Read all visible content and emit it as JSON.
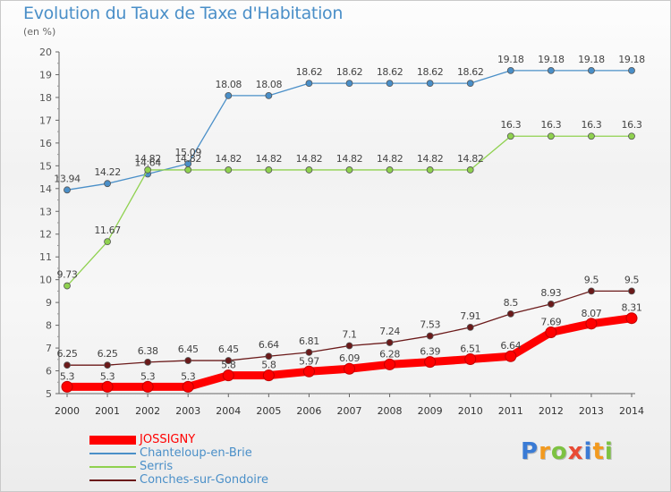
{
  "title": "Evolution du Taux de Taxe d'Habitation",
  "unit": "(en %)",
  "logo": {
    "letters": [
      "P",
      "r",
      "o",
      "x",
      "i",
      "t",
      "i"
    ],
    "colors": [
      "#3a7bd5",
      "#f29a1f",
      "#7dc242",
      "#e94b35",
      "#3a7bd5",
      "#f29a1f",
      "#7dc242"
    ]
  },
  "chart_data": {
    "type": "line",
    "x": [
      2000,
      2001,
      2002,
      2003,
      2004,
      2005,
      2006,
      2007,
      2008,
      2009,
      2010,
      2011,
      2012,
      2013,
      2014
    ],
    "ylim": [
      5,
      20
    ],
    "yticks": [
      5,
      6,
      7,
      8,
      9,
      10,
      11,
      12,
      13,
      14,
      15,
      16,
      17,
      18,
      19,
      20
    ],
    "grid": false,
    "legend_position": "bottom-left",
    "series": [
      {
        "name": "JOSSIGNY",
        "color": "#ff0000",
        "values": [
          5.3,
          5.3,
          5.3,
          5.3,
          5.8,
          5.8,
          5.97,
          6.09,
          6.28,
          6.39,
          6.51,
          6.64,
          7.69,
          8.07,
          8.31
        ],
        "labels": [
          "5.3",
          "5.3",
          "5.3",
          "5.3",
          "5.8",
          "5.8",
          "5.97",
          "6.09",
          "6.28",
          "6.39",
          "6.51",
          "6.64",
          "7.69",
          "8.07",
          "8.31"
        ]
      },
      {
        "name": "Chanteloup-en-Brie",
        "color": "#4a8fc8",
        "values": [
          13.94,
          14.22,
          14.64,
          15.09,
          18.08,
          18.08,
          18.62,
          18.62,
          18.62,
          18.62,
          18.62,
          19.18,
          19.18,
          19.18,
          19.18
        ],
        "labels": [
          "13.94",
          "14.22",
          "14.64",
          "15.09",
          "18.08",
          "18.08",
          "18.62",
          "18.62",
          "18.62",
          "18.62",
          "18.62",
          "19.18",
          "19.18",
          "19.18",
          "19.18"
        ]
      },
      {
        "name": "Serris",
        "color": "#8fd14f",
        "values": [
          9.73,
          11.67,
          14.82,
          14.82,
          14.82,
          14.82,
          14.82,
          14.82,
          14.82,
          14.82,
          14.82,
          16.3,
          16.3,
          16.3,
          16.3
        ],
        "labels": [
          "9.73",
          "11.67",
          "14.82",
          "14.82",
          "14.82",
          "14.82",
          "14.82",
          "14.82",
          "14.82",
          "14.82",
          "14.82",
          "16.3",
          "16.3",
          "16.3",
          "16.3"
        ]
      },
      {
        "name": "Conches-sur-Gondoire",
        "color": "#6b1a1a",
        "values": [
          6.25,
          6.25,
          6.38,
          6.45,
          6.45,
          6.64,
          6.81,
          7.1,
          7.24,
          7.53,
          7.91,
          8.5,
          8.93,
          9.5,
          9.5
        ],
        "labels": [
          "6.25",
          "6.25",
          "6.38",
          "6.45",
          "6.45",
          "6.64",
          "6.81",
          "7.1",
          "7.24",
          "7.53",
          "7.91",
          "8.5",
          "8.93",
          "9.5",
          "9.5"
        ]
      }
    ]
  }
}
